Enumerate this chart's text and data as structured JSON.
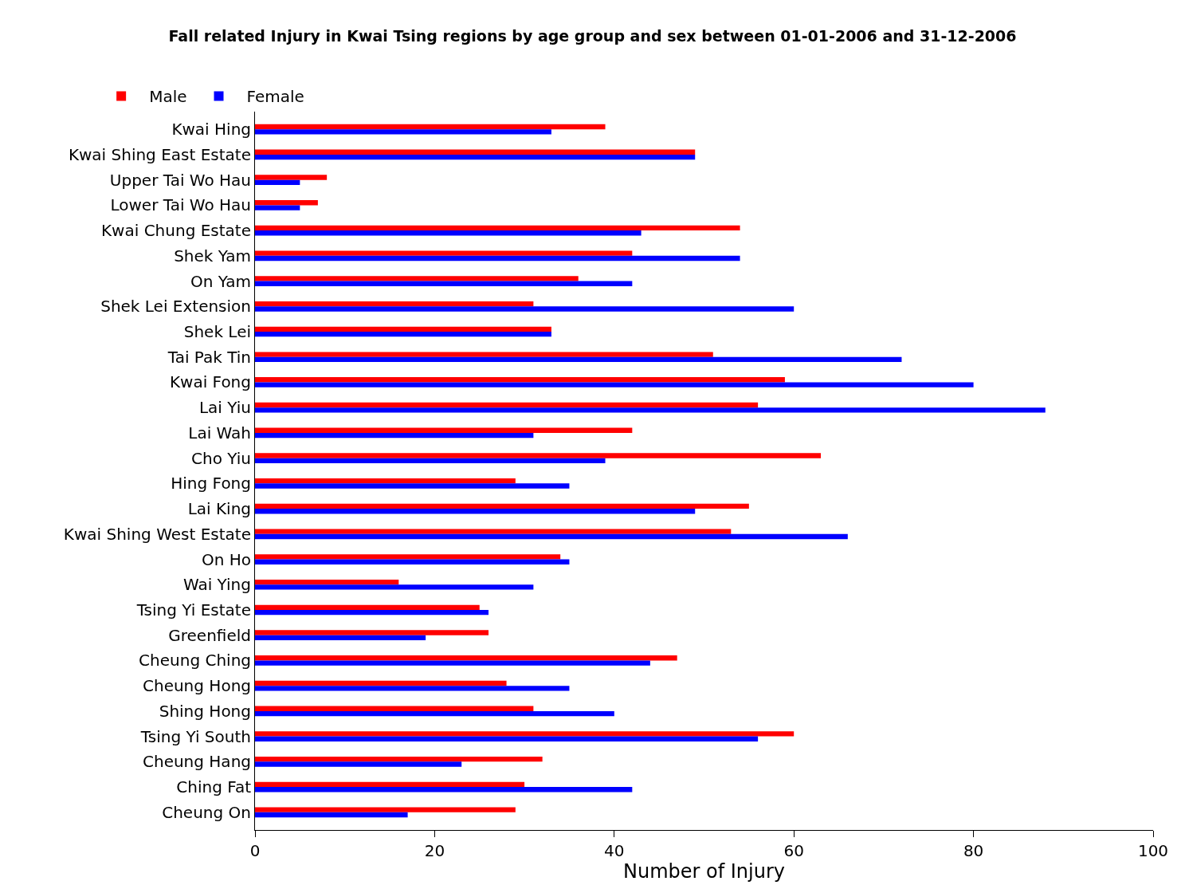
{
  "chart_data": {
    "type": "bar",
    "orientation": "horizontal",
    "title": "Fall related Injury in Kwai Tsing regions by age group and sex between 01-01-2006 and 31-12-2006",
    "xlabel": "Number of Injury",
    "categories": [
      "Kwai Hing",
      "Kwai Shing East Estate",
      "Upper Tai Wo Hau",
      "Lower Tai Wo Hau",
      "Kwai Chung Estate",
      "Shek Yam",
      "On Yam",
      "Shek Lei Extension",
      "Shek Lei",
      "Tai Pak Tin",
      "Kwai Fong",
      "Lai Yiu",
      "Lai Wah",
      "Cho Yiu",
      "Hing Fong",
      "Lai King",
      "Kwai Shing West Estate",
      "On Ho",
      "Wai Ying",
      "Tsing Yi Estate",
      "Greenfield",
      "Cheung Ching",
      "Cheung Hong",
      "Shing Hong",
      "Tsing Yi South",
      "Cheung Hang",
      "Ching Fat",
      "Cheung On"
    ],
    "series": [
      {
        "name": "Male",
        "color": "#ff0000",
        "values": [
          39,
          49,
          8,
          7,
          54,
          42,
          36,
          31,
          33,
          51,
          59,
          56,
          42,
          63,
          29,
          55,
          53,
          34,
          16,
          25,
          26,
          47,
          28,
          31,
          60,
          32,
          30,
          29
        ]
      },
      {
        "name": "Female",
        "color": "#0000ff",
        "values": [
          33,
          49,
          5,
          5,
          43,
          54,
          42,
          60,
          33,
          72,
          80,
          88,
          31,
          39,
          35,
          49,
          66,
          35,
          31,
          26,
          19,
          44,
          35,
          40,
          56,
          23,
          42,
          17
        ]
      }
    ],
    "xlim": [
      0,
      100
    ],
    "xticks": [
      0,
      20,
      40,
      60,
      80,
      100
    ],
    "legend": "top left"
  }
}
